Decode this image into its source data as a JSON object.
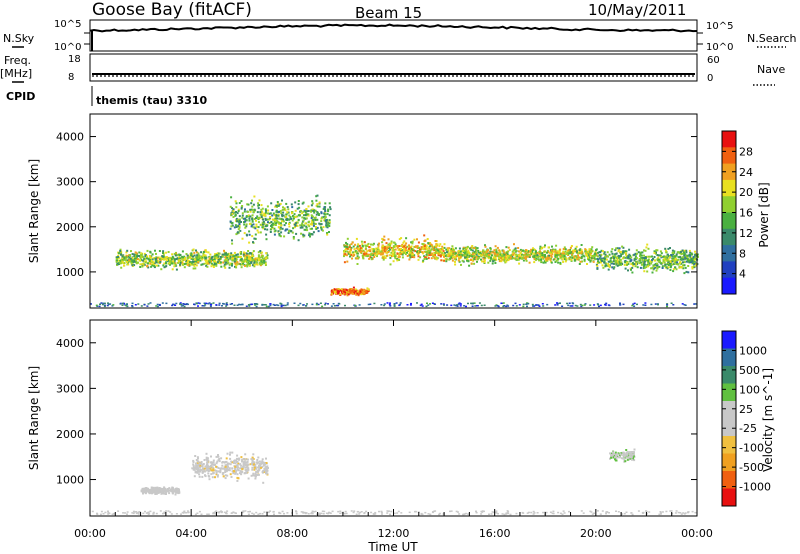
{
  "header": {
    "station": "Goose Bay (fitACF)",
    "beam": "Beam 15",
    "date": "10/May/2011"
  },
  "left_labels": {
    "nsky": "N.Sky",
    "freq": "Freq.",
    "freq_unit": "[MHz]",
    "cpid": "CPID"
  },
  "right_labels": {
    "nsearch": "N.Search",
    "nave": "Nave"
  },
  "cpid_text": "themis (tau) 3310",
  "noise_panel": {
    "left_ticks": [
      "10^5",
      "10^0"
    ],
    "right_ticks": [
      "10^5",
      "10^0"
    ]
  },
  "freq_panel": {
    "left_ticks": [
      "18",
      "8"
    ],
    "right_ticks": [
      "60",
      "0"
    ]
  },
  "colors": {
    "power_scale": [
      "#1a1aff",
      "#2040c0",
      "#2f6f9f",
      "#3a8a6a",
      "#4ab040",
      "#90d030",
      "#e8e020",
      "#f0a020",
      "#f06010",
      "#e81010"
    ],
    "velocity_scale": [
      "#e81010",
      "#f06010",
      "#f0a020",
      "#f0c040",
      "#c8c8c8",
      "#c8c8c8",
      "#60c040",
      "#3a8a6a",
      "#2f6f9f",
      "#1a1aff"
    ],
    "scatter_gray": "#c8c8c8"
  },
  "chart_data": [
    {
      "type": "heatmap",
      "panel": "power",
      "ylabel": "Slant Range [km]",
      "yticks": [
        "1000",
        "2000",
        "3000",
        "4000"
      ],
      "ylim": [
        200,
        4500
      ],
      "xlim": [
        "00:00",
        "24:00"
      ],
      "colorbar_label": "Power [dB]",
      "colorbar_ticks": [
        "28",
        "24",
        "20",
        "16",
        "12",
        "8",
        "4"
      ],
      "colorbar_range": [
        0,
        30
      ],
      "features": [
        {
          "time_start": "01:00",
          "time_end": "07:00",
          "range_center_km": 1300,
          "range_width_km": 300,
          "power_db": 16
        },
        {
          "time_start": "05:30",
          "time_end": "09:30",
          "range_center_km": 2200,
          "range_width_km": 700,
          "power_db": 14
        },
        {
          "time_start": "09:30",
          "time_end": "11:00",
          "range_center_km": 580,
          "range_width_km": 120,
          "power_db": 26
        },
        {
          "time_start": "10:00",
          "time_end": "14:00",
          "range_center_km": 1500,
          "range_width_km": 400,
          "power_db": 20
        },
        {
          "time_start": "14:00",
          "time_end": "20:00",
          "range_center_km": 1400,
          "range_width_km": 300,
          "power_db": 18
        },
        {
          "time_start": "20:00",
          "time_end": "24:00",
          "range_center_km": 1300,
          "range_width_km": 400,
          "power_db": 14
        }
      ]
    },
    {
      "type": "heatmap",
      "panel": "velocity",
      "ylabel": "Slant Range [km]",
      "yticks": [
        "1000",
        "2000",
        "3000",
        "4000"
      ],
      "ylim": [
        200,
        4500
      ],
      "xlim": [
        "00:00",
        "24:00"
      ],
      "xticks": [
        "00:00",
        "04:00",
        "08:00",
        "12:00",
        "16:00",
        "20:00",
        "00:00"
      ],
      "xlabel": "Time UT",
      "colorbar_label": "Velocity [m s^-1]",
      "colorbar_ticks": [
        "1000",
        "500",
        "100",
        "25",
        "-25",
        "-100",
        "-500",
        "-1000"
      ],
      "features": [
        {
          "time_start": "04:00",
          "time_end": "07:00",
          "range_center_km": 1300,
          "range_width_km": 400,
          "velocity_ms": -300
        },
        {
          "time_start": "02:00",
          "time_end": "03:30",
          "range_center_km": 780,
          "range_width_km": 120,
          "velocity_ms": -150
        },
        {
          "time_start": "20:30",
          "time_end": "21:30",
          "range_center_km": 1550,
          "range_width_km": 200,
          "velocity_ms": 150
        }
      ]
    }
  ]
}
